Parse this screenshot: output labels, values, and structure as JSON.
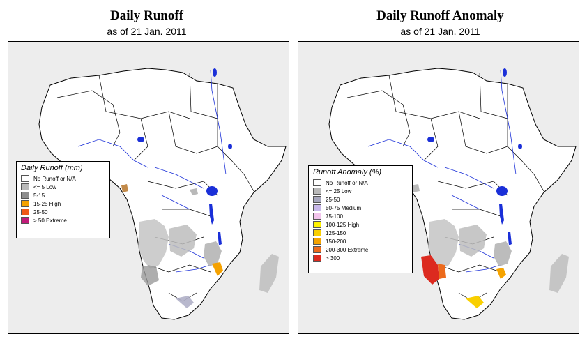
{
  "colors": {
    "land": "#ffffff",
    "ocean": "#ededed",
    "water": "#1a2fd8",
    "low": "#b9b9b9"
  },
  "left_panel": {
    "title": "Daily Runoff",
    "subtitle": "as of  21 Jan. 2011",
    "legend": {
      "title": "Daily Runoff (mm)",
      "items": [
        {
          "label": "No Runoff or N/A",
          "color": "#ffffff"
        },
        {
          "label": "<= 5   Low",
          "color": "#b9b9b9"
        },
        {
          "label": "5-15",
          "color": "#8d8d8d"
        },
        {
          "label": "15-25 High",
          "color": "#f4a100"
        },
        {
          "label": "25-50",
          "color": "#ef5a16"
        },
        {
          "label": "> 50  Extreme",
          "color": "#c11b79"
        }
      ]
    }
  },
  "right_panel": {
    "title": "Daily Runoff Anomaly",
    "subtitle": "as of  21 Jan. 2011",
    "legend": {
      "title": "Runoff Anomaly (%)",
      "items": [
        {
          "label": "No Runoff or N/A",
          "color": "#ffffff"
        },
        {
          "label": "<= 25      Low",
          "color": "#b9b9b9"
        },
        {
          "label": "25-50",
          "color": "#a7a7bd"
        },
        {
          "label": "50-75    Medium",
          "color": "#c8b8ea"
        },
        {
          "label": "75-100",
          "color": "#f2c3ec"
        },
        {
          "label": "100-125  High",
          "color": "#fff200"
        },
        {
          "label": "125-150",
          "color": "#f9cf00"
        },
        {
          "label": "150-200",
          "color": "#f5a300"
        },
        {
          "label": "200-300  Extreme",
          "color": "#ec6a1c"
        },
        {
          "label": "> 300",
          "color": "#dc2a1f"
        }
      ]
    }
  }
}
